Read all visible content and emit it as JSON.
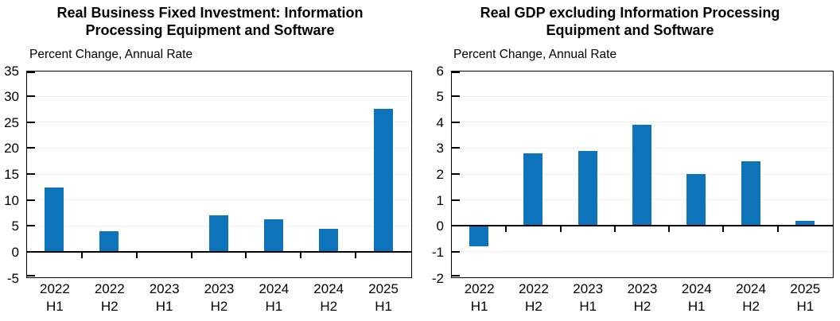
{
  "page": {
    "background": "#ffffff"
  },
  "chart_data": [
    {
      "type": "bar",
      "title": "Real Business Fixed Investment: Information Processing Equipment and Software",
      "title_lines": [
        "Real Business Fixed Investment: Information",
        "Processing Equipment and Software"
      ],
      "ylabel": "Percent Change, Annual Rate",
      "xlabel": "",
      "categories": [
        {
          "year": "2022",
          "half": "H1"
        },
        {
          "year": "2022",
          "half": "H2"
        },
        {
          "year": "2023",
          "half": "H1"
        },
        {
          "year": "2023",
          "half": "H2"
        },
        {
          "year": "2024",
          "half": "H1"
        },
        {
          "year": "2024",
          "half": "H2"
        },
        {
          "year": "2025",
          "half": "H1"
        }
      ],
      "values": [
        12.4,
        4.0,
        -0.1,
        7.0,
        6.2,
        4.5,
        27.5
      ],
      "ylim": [
        -5,
        35
      ],
      "yticks": [
        35,
        30,
        25,
        20,
        15,
        10,
        5,
        0,
        -5
      ],
      "bar_color": "#0d74bc",
      "axis_color": "#000000",
      "grid": true,
      "legend_position": "none"
    },
    {
      "type": "bar",
      "title": "Real GDP excluding Information Processing Equipment and Software",
      "title_lines": [
        "Real GDP excluding Information Processing",
        "Equipment and Software"
      ],
      "ylabel": "Percent Change, Annual Rate",
      "xlabel": "",
      "categories": [
        {
          "year": "2022",
          "half": "H1"
        },
        {
          "year": "2022",
          "half": "H2"
        },
        {
          "year": "2023",
          "half": "H1"
        },
        {
          "year": "2023",
          "half": "H2"
        },
        {
          "year": "2024",
          "half": "H1"
        },
        {
          "year": "2024",
          "half": "H2"
        },
        {
          "year": "2025",
          "half": "H1"
        }
      ],
      "values": [
        -0.8,
        2.8,
        2.9,
        3.9,
        2.0,
        2.5,
        0.2
      ],
      "ylim": [
        -2,
        6
      ],
      "yticks": [
        6,
        5,
        4,
        3,
        2,
        1,
        0,
        -1,
        -2
      ],
      "bar_color": "#0d74bc",
      "axis_color": "#000000",
      "grid": true,
      "legend_position": "none"
    }
  ]
}
